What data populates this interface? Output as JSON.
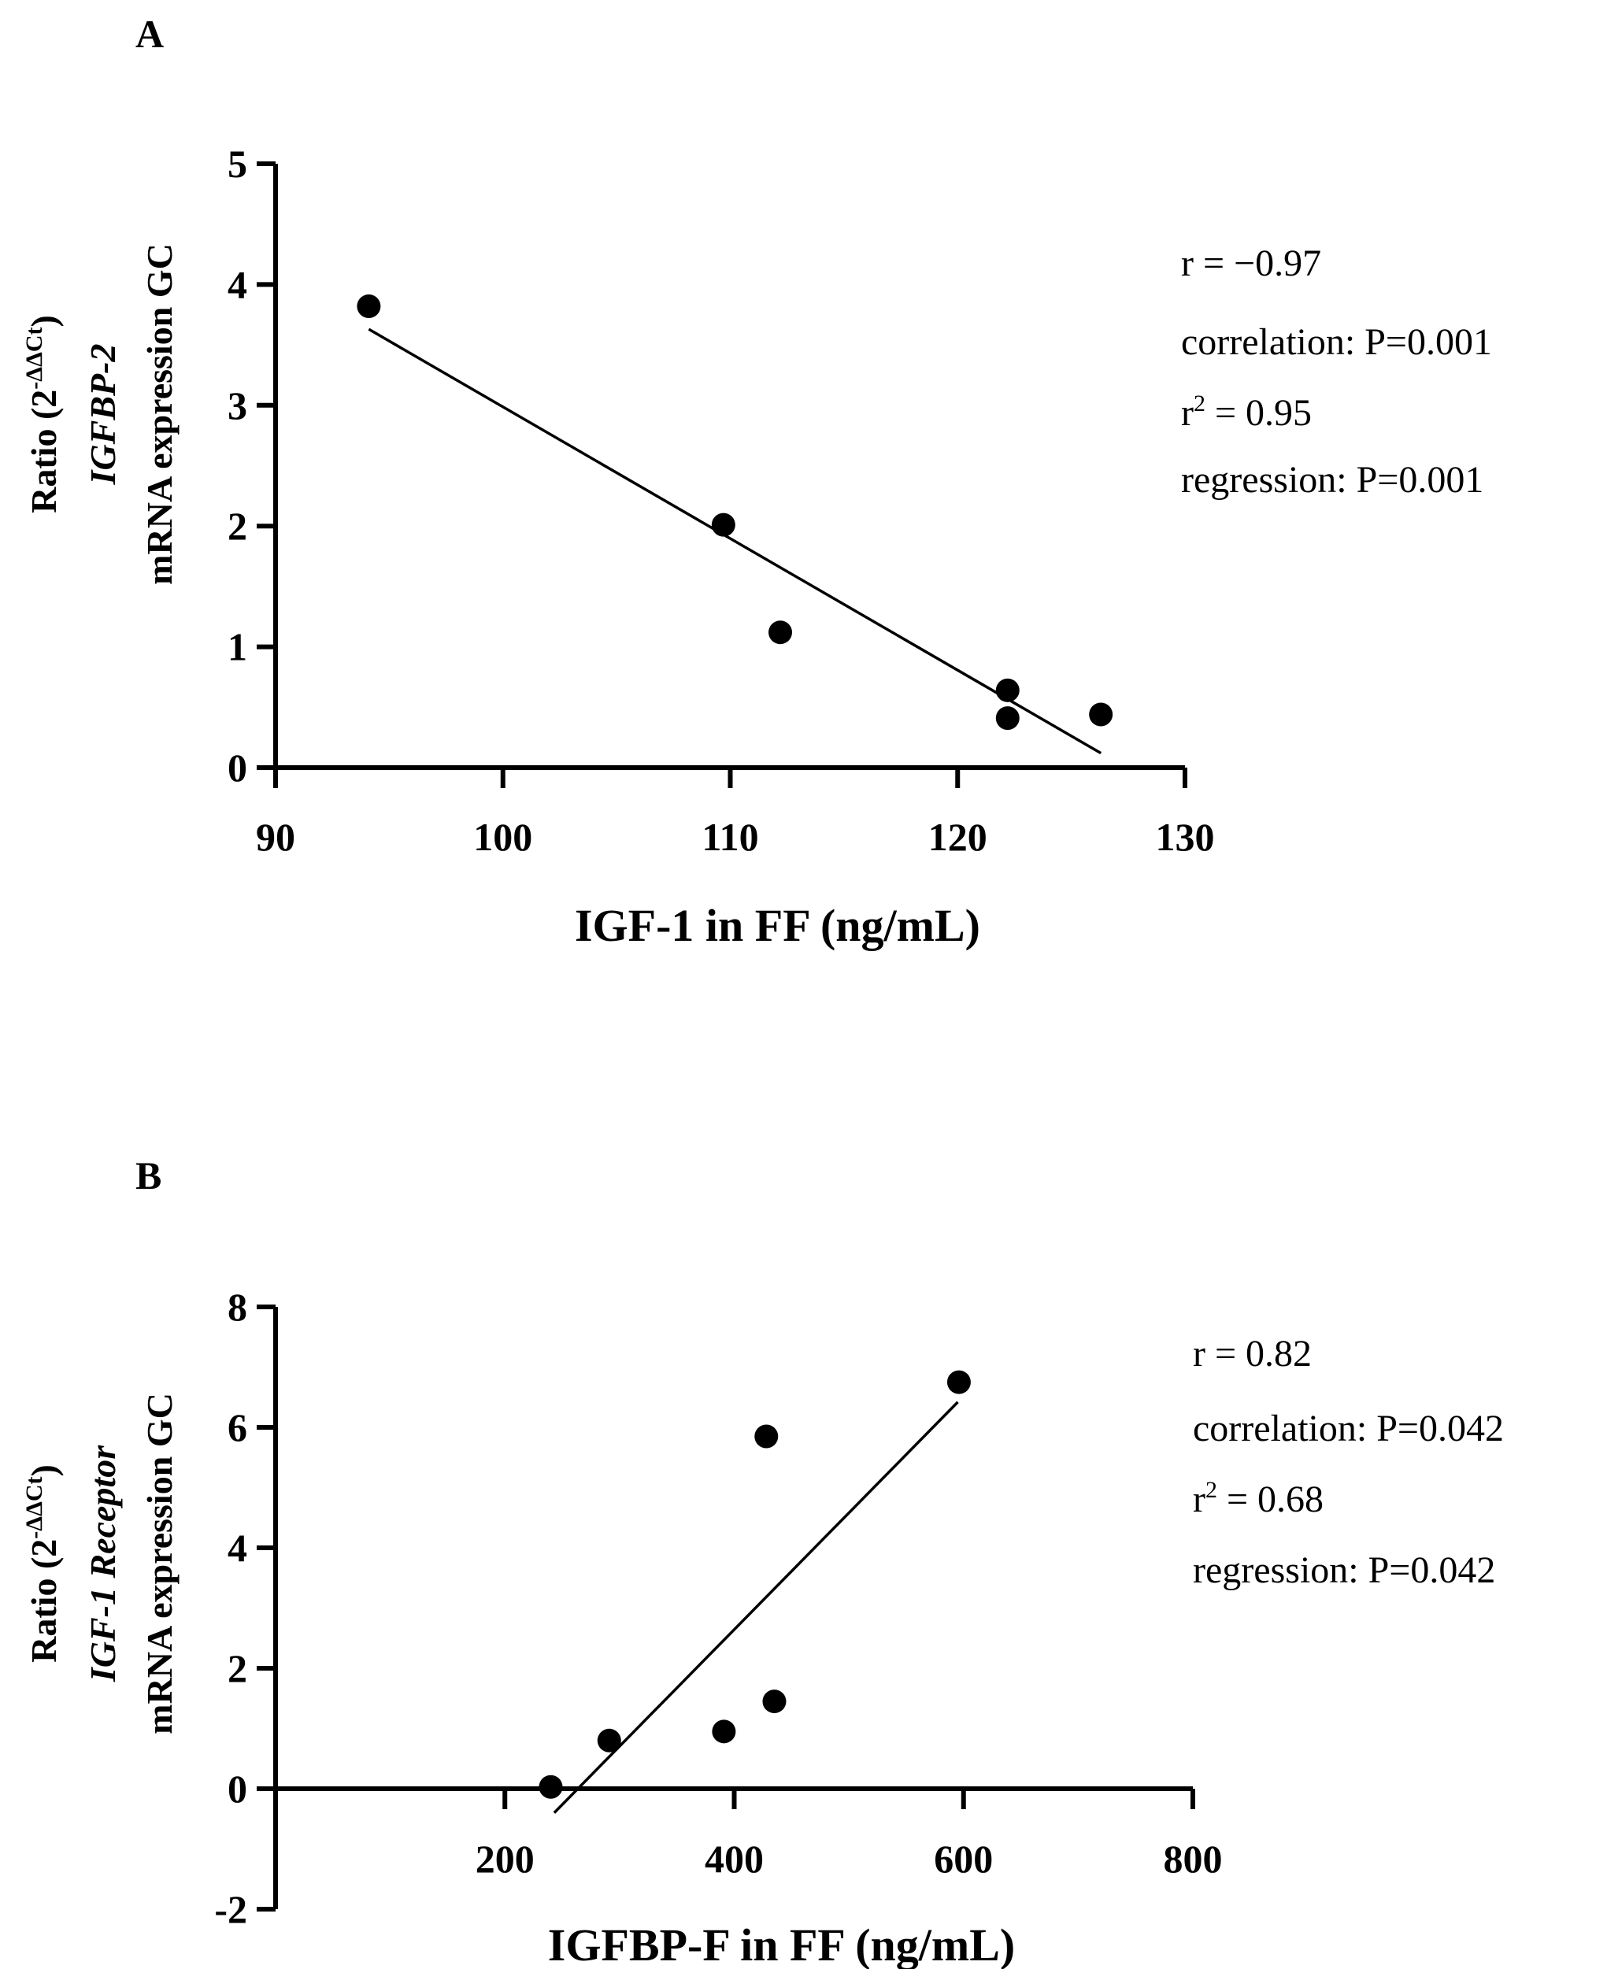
{
  "chart_data": [
    {
      "panel": "A",
      "type": "scatter",
      "xlabel": "IGF-1 in FF (ng/mL)",
      "ylabel_lines": [
        {
          "text": "Ratio (2",
          "sup": "-ΔΔCt",
          "suffix": ")"
        },
        {
          "text": "IGFBP-2",
          "italic": true
        },
        {
          "text": "mRNA expression GC"
        }
      ],
      "xlim": [
        90,
        130
      ],
      "ylim": [
        0,
        5
      ],
      "xticks": [
        90,
        100,
        110,
        120,
        130
      ],
      "yticks": [
        0,
        1,
        2,
        3,
        4,
        5
      ],
      "points": [
        {
          "x": 94.1,
          "y": 3.82
        },
        {
          "x": 109.7,
          "y": 2.01
        },
        {
          "x": 112.2,
          "y": 1.12
        },
        {
          "x": 122.2,
          "y": 0.64
        },
        {
          "x": 122.2,
          "y": 0.41
        },
        {
          "x": 126.3,
          "y": 0.44
        }
      ],
      "fit_line": {
        "x1": 94.1,
        "y1": 3.63,
        "x2": 126.3,
        "y2": 0.12
      },
      "stats": [
        {
          "text": "r = −0.97"
        },
        {
          "text": "correlation: P=0.001"
        },
        {
          "text": "r",
          "sup": "2",
          "suffix": " = 0.95"
        },
        {
          "text": "regression: P=0.001"
        }
      ]
    },
    {
      "panel": "B",
      "type": "scatter",
      "xlabel": "IGFBP-F in FF (ng/mL)",
      "ylabel_lines": [
        {
          "text": "Ratio (2",
          "sup": "-ΔΔCt",
          "suffix": ")"
        },
        {
          "text": "IGF-1 Receptor",
          "italic": true
        },
        {
          "text": "mRNA expression GC"
        }
      ],
      "xlim": [
        0,
        800
      ],
      "ylim": [
        -2,
        8
      ],
      "xticks": [
        200,
        400,
        600,
        800
      ],
      "yticks": [
        -2,
        0,
        2,
        4,
        6,
        8
      ],
      "points": [
        {
          "x": 240,
          "y": 0.03
        },
        {
          "x": 291,
          "y": 0.8
        },
        {
          "x": 391,
          "y": 0.95
        },
        {
          "x": 428,
          "y": 5.85
        },
        {
          "x": 435,
          "y": 1.45
        },
        {
          "x": 596,
          "y": 6.75
        }
      ],
      "fit_line": {
        "x1": 243,
        "y1": -0.4,
        "x2": 595,
        "y2": 6.42
      },
      "stats": [
        {
          "text": "r = 0.82"
        },
        {
          "text": "correlation: P=0.042"
        },
        {
          "text": "r",
          "sup": "2",
          "suffix": " = 0.68"
        },
        {
          "text": "regression: P=0.042"
        }
      ]
    }
  ]
}
